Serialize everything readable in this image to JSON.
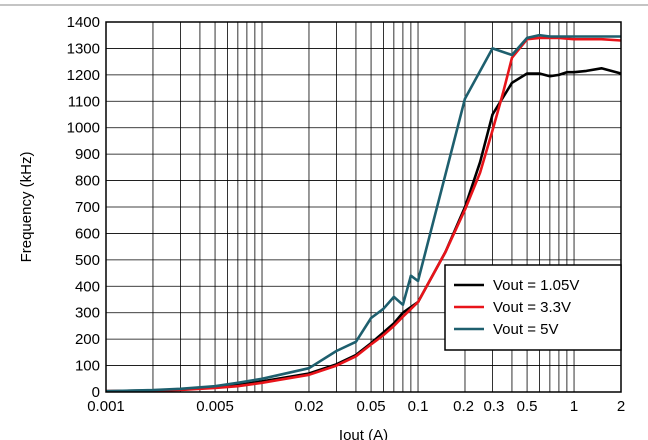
{
  "chart_data": {
    "type": "line",
    "xscale": "log",
    "xlim": [
      0.001,
      2
    ],
    "ylim": [
      0,
      1400
    ],
    "xlabel": "Iout (A)",
    "ylabel": "Frequency (kHz)",
    "grid": true,
    "legend_position": "bottom-right",
    "xticks": [
      {
        "value": 0.001,
        "label": "0.001"
      },
      {
        "value": 0.005,
        "label": "0.005"
      },
      {
        "value": 0.02,
        "label": "0.02"
      },
      {
        "value": 0.05,
        "label": "0.05"
      },
      {
        "value": 0.1,
        "label": "0.1"
      },
      {
        "value": 0.2,
        "label": "0.2"
      },
      {
        "value": 0.3,
        "label": "0.3"
      },
      {
        "value": 0.5,
        "label": "0.5"
      },
      {
        "value": 1,
        "label": "1"
      },
      {
        "value": 2,
        "label": "2"
      }
    ],
    "yticks": [
      0,
      100,
      200,
      300,
      400,
      500,
      600,
      700,
      800,
      900,
      1000,
      1100,
      1200,
      1300,
      1400
    ],
    "series": [
      {
        "name": "Vout = 1.05V",
        "color": "#000000",
        "points": [
          [
            0.001,
            3
          ],
          [
            0.002,
            6
          ],
          [
            0.003,
            10
          ],
          [
            0.005,
            18
          ],
          [
            0.007,
            26
          ],
          [
            0.01,
            40
          ],
          [
            0.02,
            70
          ],
          [
            0.03,
            105
          ],
          [
            0.04,
            140
          ],
          [
            0.05,
            185
          ],
          [
            0.06,
            225
          ],
          [
            0.07,
            260
          ],
          [
            0.08,
            300
          ],
          [
            0.1,
            340
          ],
          [
            0.15,
            530
          ],
          [
            0.2,
            700
          ],
          [
            0.25,
            870
          ],
          [
            0.3,
            1050
          ],
          [
            0.4,
            1170
          ],
          [
            0.5,
            1205
          ],
          [
            0.6,
            1205
          ],
          [
            0.7,
            1195
          ],
          [
            0.8,
            1200
          ],
          [
            0.9,
            1210
          ],
          [
            1.0,
            1210
          ],
          [
            1.2,
            1215
          ],
          [
            1.5,
            1225
          ],
          [
            2,
            1205
          ]
        ]
      },
      {
        "name": "Vout = 3.3V",
        "color": "#e8141a",
        "points": [
          [
            0.001,
            3
          ],
          [
            0.002,
            5
          ],
          [
            0.003,
            8
          ],
          [
            0.005,
            15
          ],
          [
            0.007,
            22
          ],
          [
            0.01,
            35
          ],
          [
            0.02,
            65
          ],
          [
            0.03,
            100
          ],
          [
            0.04,
            135
          ],
          [
            0.05,
            180
          ],
          [
            0.06,
            215
          ],
          [
            0.07,
            250
          ],
          [
            0.08,
            285
          ],
          [
            0.1,
            340
          ],
          [
            0.15,
            530
          ],
          [
            0.2,
            690
          ],
          [
            0.25,
            830
          ],
          [
            0.3,
            990
          ],
          [
            0.35,
            1130
          ],
          [
            0.4,
            1265
          ],
          [
            0.5,
            1335
          ],
          [
            0.6,
            1340
          ],
          [
            0.8,
            1340
          ],
          [
            1.0,
            1335
          ],
          [
            1.5,
            1335
          ],
          [
            2,
            1330
          ]
        ]
      },
      {
        "name": "Vout = 5V",
        "color": "#1e5f6e",
        "points": [
          [
            0.001,
            3
          ],
          [
            0.002,
            7
          ],
          [
            0.003,
            12
          ],
          [
            0.005,
            22
          ],
          [
            0.007,
            35
          ],
          [
            0.01,
            50
          ],
          [
            0.02,
            90
          ],
          [
            0.03,
            155
          ],
          [
            0.04,
            190
          ],
          [
            0.05,
            280
          ],
          [
            0.06,
            315
          ],
          [
            0.07,
            360
          ],
          [
            0.08,
            330
          ],
          [
            0.09,
            440
          ],
          [
            0.1,
            420
          ],
          [
            0.2,
            1110
          ],
          [
            0.3,
            1300
          ],
          [
            0.4,
            1275
          ],
          [
            0.5,
            1340
          ],
          [
            0.6,
            1350
          ],
          [
            0.7,
            1345
          ],
          [
            0.8,
            1345
          ],
          [
            1.0,
            1345
          ],
          [
            1.5,
            1345
          ],
          [
            2,
            1345
          ]
        ]
      }
    ]
  }
}
